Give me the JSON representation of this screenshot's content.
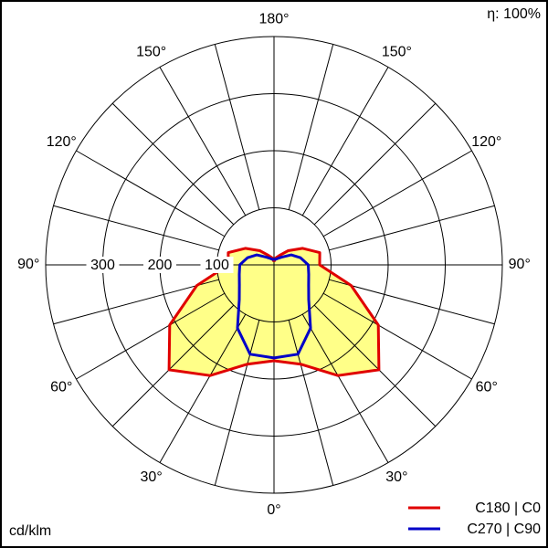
{
  "chart_data": {
    "type": "polar",
    "annotation": "η: 100%",
    "unit_label": "cd/klm",
    "x": [
      -180,
      -165,
      -150,
      -135,
      -120,
      -105,
      -90,
      -75,
      -60,
      -45,
      -30,
      -15,
      0,
      15,
      30,
      45,
      60,
      75,
      90,
      105,
      120,
      135,
      150,
      165,
      180
    ],
    "series": [
      {
        "name": "C180 | C0",
        "color": "#e00000",
        "fill": "#ffff88",
        "values": [
          6,
          13,
          19,
          35,
          58,
          83,
          80,
          140,
          211,
          260,
          224,
          180,
          168,
          180,
          224,
          260,
          211,
          140,
          80,
          83,
          58,
          35,
          19,
          13,
          6
        ]
      },
      {
        "name": "C270 | C90",
        "color": "#0000c8",
        "values": [
          10,
          10,
          13,
          19,
          35,
          48,
          60,
          63,
          70,
          86,
          128,
          162,
          163,
          162,
          128,
          86,
          70,
          63,
          60,
          48,
          35,
          19,
          13,
          10,
          10
        ]
      }
    ],
    "rlim": [
      0,
      400
    ],
    "rticks": [
      100,
      200,
      300
    ],
    "rgrid": [
      100,
      200,
      300,
      400
    ],
    "angle_ticks": [
      {
        "value": 180,
        "label": "180°"
      },
      {
        "value": -150,
        "label": "150°"
      },
      {
        "value": 150,
        "label": "150°"
      },
      {
        "value": -120,
        "label": "120°"
      },
      {
        "value": 120,
        "label": "120°"
      },
      {
        "value": -90,
        "label": "90°"
      },
      {
        "value": 90,
        "label": "90°"
      },
      {
        "value": -60,
        "label": "60°"
      },
      {
        "value": 60,
        "label": "60°"
      },
      {
        "value": -30,
        "label": "30°"
      },
      {
        "value": 30,
        "label": "30°"
      },
      {
        "value": 0,
        "label": "0°"
      }
    ]
  }
}
